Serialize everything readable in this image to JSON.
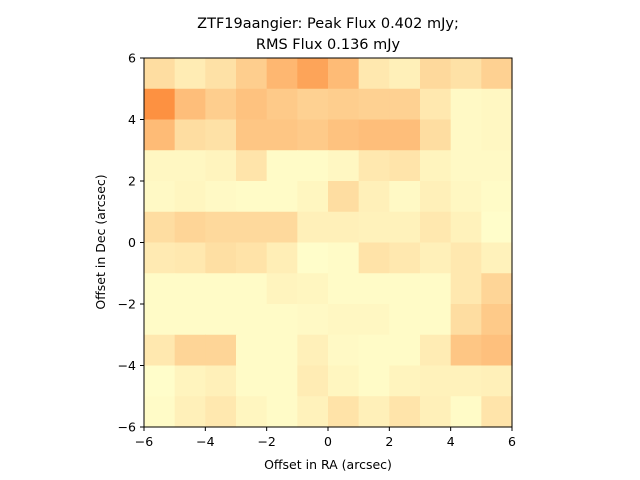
{
  "chart_data": {
    "type": "heatmap",
    "title_line1": "ZTF19aangier: Peak Flux 0.402 mJy;",
    "title_line2": "RMS Flux 0.136 mJy",
    "xlabel": "Offset in RA (arcsec)",
    "ylabel": "Offset in Dec (arcsec)",
    "xlim": [
      -6,
      6
    ],
    "ylim": [
      -6,
      6
    ],
    "x_ticks": [
      -6,
      -4,
      -2,
      0,
      2,
      4,
      6
    ],
    "y_ticks": [
      -6,
      -4,
      -2,
      0,
      2,
      4,
      6
    ],
    "x_tick_labels": [
      "−6",
      "−4",
      "−2",
      "0",
      "2",
      "4",
      "6"
    ],
    "y_tick_labels": [
      "−6",
      "−4",
      "−2",
      "0",
      "2",
      "4",
      "6"
    ],
    "colormap": "YlOrRd",
    "color_low": "#ffffcc",
    "color_high": "#fd8d3c",
    "rows_top_to_bottom": [
      [
        0.18,
        0.1,
        0.16,
        0.26,
        0.38,
        0.48,
        0.36,
        0.12,
        0.08,
        0.2,
        0.16,
        0.24
      ],
      [
        0.58,
        0.34,
        0.26,
        0.32,
        0.28,
        0.24,
        0.26,
        0.24,
        0.24,
        0.12,
        0.03,
        0.04
      ],
      [
        0.36,
        0.18,
        0.16,
        0.3,
        0.3,
        0.28,
        0.32,
        0.34,
        0.34,
        0.18,
        0.03,
        0.04
      ],
      [
        0.04,
        0.04,
        0.06,
        0.14,
        0.02,
        0.02,
        0.04,
        0.12,
        0.14,
        0.06,
        0.03,
        0.03
      ],
      [
        0.03,
        0.05,
        0.03,
        0.02,
        0.02,
        0.05,
        0.18,
        0.08,
        0.03,
        0.08,
        0.04,
        0.02
      ],
      [
        0.18,
        0.22,
        0.2,
        0.2,
        0.2,
        0.08,
        0.08,
        0.07,
        0.07,
        0.12,
        0.07,
        0.01
      ],
      [
        0.11,
        0.12,
        0.17,
        0.15,
        0.09,
        0.01,
        0.02,
        0.15,
        0.12,
        0.08,
        0.12,
        0.07
      ],
      [
        0.02,
        0.02,
        0.02,
        0.02,
        0.06,
        0.05,
        0.02,
        0.02,
        0.02,
        0.02,
        0.12,
        0.22
      ],
      [
        0.02,
        0.02,
        0.02,
        0.02,
        0.02,
        0.03,
        0.04,
        0.04,
        0.02,
        0.02,
        0.18,
        0.28
      ],
      [
        0.12,
        0.22,
        0.22,
        0.02,
        0.02,
        0.08,
        0.03,
        0.02,
        0.02,
        0.1,
        0.3,
        0.33
      ],
      [
        0.01,
        0.06,
        0.08,
        0.02,
        0.02,
        0.1,
        0.05,
        0.02,
        0.06,
        0.07,
        0.07,
        0.08
      ],
      [
        0.02,
        0.08,
        0.12,
        0.05,
        0.02,
        0.07,
        0.15,
        0.08,
        0.14,
        0.08,
        0.02,
        0.14
      ]
    ]
  }
}
